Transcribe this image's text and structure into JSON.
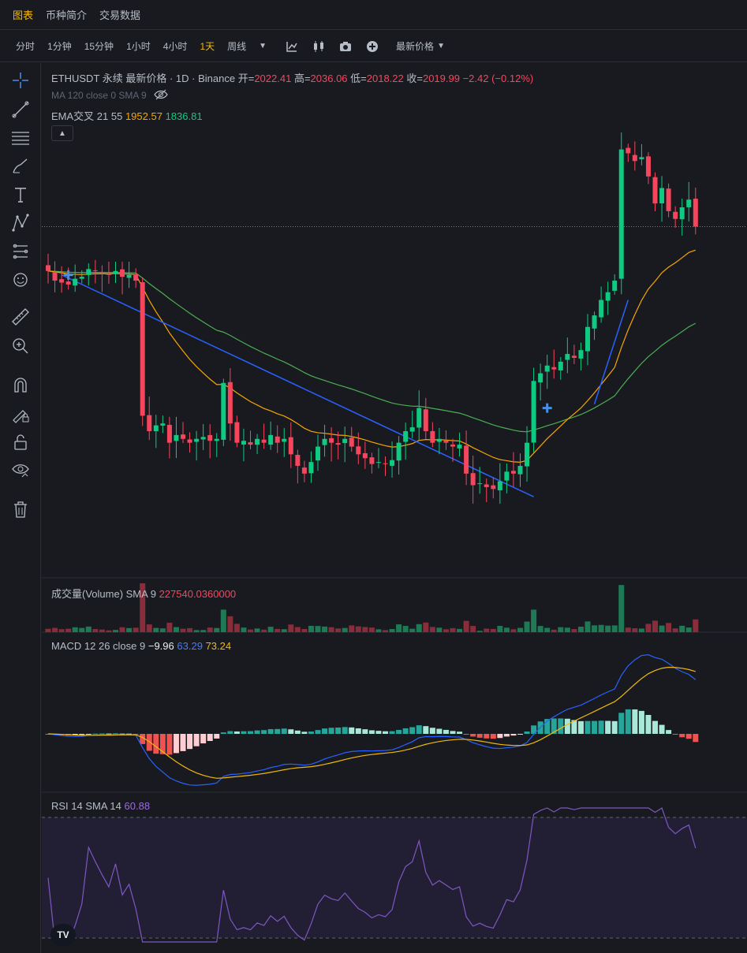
{
  "tabs": [
    {
      "label": "图表",
      "active": true
    },
    {
      "label": "币种简介",
      "active": false
    },
    {
      "label": "交易数据",
      "active": false
    }
  ],
  "intervals": [
    {
      "label": "分时",
      "active": false
    },
    {
      "label": "1分钟",
      "active": false
    },
    {
      "label": "15分钟",
      "active": false
    },
    {
      "label": "1小时",
      "active": false
    },
    {
      "label": "4小时",
      "active": false
    },
    {
      "label": "1天",
      "active": true
    },
    {
      "label": "周线",
      "active": false
    }
  ],
  "price_type": "最新价格",
  "main_legend": {
    "title": "ETHUSDT 永续 最新价格 · 1D · Binance",
    "open_label": "开=",
    "open": "2022.41",
    "high_label": "高=",
    "high": "2036.06",
    "low_label": "低=",
    "low": "2018.22",
    "close_label": "收=",
    "close": "2019.99",
    "change": "−2.42 (−0.12%)"
  },
  "ma_legend": "MA 120 close 0 SMA 9",
  "ema_legend": {
    "label": "EMA交叉 21 55",
    "v1": "1952.57",
    "v2": "1836.81"
  },
  "volume_legend": {
    "label": "成交量(Volume) SMA 9",
    "value": "227540.0360000"
  },
  "macd_legend": {
    "label": "MACD 12 26 close 9",
    "hist": "−9.96",
    "macd": "63.29",
    "signal": "73.24"
  },
  "rsi_legend": {
    "label": "RSI 14 SMA 14",
    "value": "60.88"
  },
  "logo_text": "TV",
  "colors": {
    "up": "#0ecb81",
    "down": "#f6465d",
    "ema21": "#f7a600",
    "ema55": "#4caf50",
    "trend": "#2962ff",
    "macd": "#2962ff",
    "signal": "#f0b90b",
    "rsi": "#7e57c2"
  },
  "chart_data": {
    "type": "candlestick",
    "symbol": "ETHUSDT",
    "interval": "1D",
    "ohlc_close": [
      1905,
      1880,
      1875,
      1870,
      1885,
      1890,
      1910,
      1905,
      1900,
      1895,
      1905,
      1890,
      1895,
      1880,
      1530,
      1490,
      1505,
      1510,
      1460,
      1480,
      1470,
      1460,
      1470,
      1475,
      1465,
      1470,
      1615,
      1510,
      1460,
      1465,
      1455,
      1470,
      1460,
      1480,
      1460,
      1470,
      1430,
      1400,
      1380,
      1410,
      1450,
      1470,
      1460,
      1455,
      1470,
      1450,
      1430,
      1420,
      1405,
      1410,
      1405,
      1415,
      1460,
      1490,
      1500,
      1550,
      1490,
      1460,
      1470,
      1460,
      1450,
      1455,
      1380,
      1350,
      1355,
      1345,
      1340,
      1360,
      1385,
      1380,
      1400,
      1460,
      1620,
      1640,
      1660,
      1650,
      1670,
      1690,
      1680,
      1700,
      1760,
      1790,
      1830,
      1850,
      1880,
      2220,
      2210,
      2190,
      2200,
      2150,
      2080,
      2120,
      2060,
      2040,
      2070,
      2090,
      2020
    ],
    "ema21_last": 1952.57,
    "ema55_last": 1836.81,
    "volume_sma9": 227540.036,
    "macd": {
      "hist": -9.96,
      "macd": 63.29,
      "signal": 73.24
    },
    "rsi": {
      "value": 60.88,
      "upper": 70,
      "lower": 30
    }
  }
}
